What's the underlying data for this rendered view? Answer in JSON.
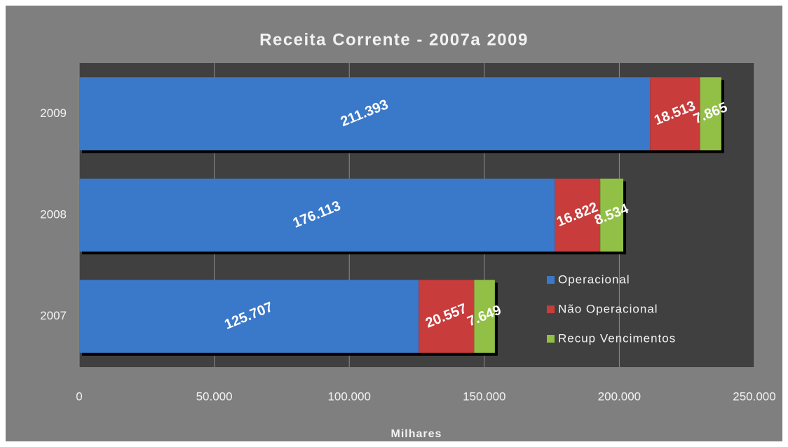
{
  "chart_data": {
    "type": "bar",
    "orientation": "horizontal",
    "stacked": true,
    "title": "Receita Corrente - 2007a 2009",
    "x_label": "Milhares",
    "categories": [
      "2009",
      "2008",
      "2007"
    ],
    "series": [
      {
        "name": "Operacional",
        "color": "#3a78c9",
        "values": [
          211393,
          176113,
          125707
        ],
        "value_labels": [
          "211.393",
          "176.113",
          "125.707"
        ]
      },
      {
        "name": "Não Operacional",
        "color": "#c83c3c",
        "values": [
          18513,
          16822,
          20557
        ],
        "value_labels": [
          "18.513",
          "16.822",
          "20.557"
        ]
      },
      {
        "name": "Recup Vencimentos",
        "color": "#92c046",
        "values": [
          7865,
          8534,
          7649
        ],
        "value_labels": [
          "7.865",
          "8.534",
          "7.649"
        ]
      }
    ],
    "xlim": [
      0,
      250000
    ],
    "xticks": [
      0,
      {
        "value": 50000,
        "label": "50.000"
      },
      {
        "value": 100000,
        "label": "100.000"
      },
      {
        "value": 150000,
        "label": "150.000"
      },
      {
        "value": 200000,
        "label": "200.000"
      },
      {
        "value": 250000,
        "label": "250.000"
      }
    ],
    "grid": true,
    "legend": "lower right"
  }
}
